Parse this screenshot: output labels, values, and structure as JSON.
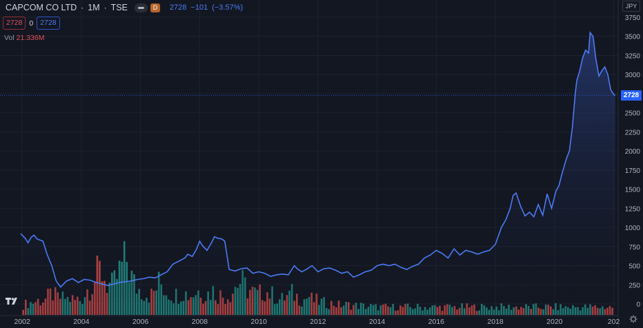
{
  "header": {
    "symbol": "CAPCOM CO LTD",
    "interval": "1M",
    "exchange": "TSE",
    "separator": "·",
    "badge": "D",
    "price": "2728",
    "change": "−101",
    "change_pct": "(−3.57%)"
  },
  "ohlc_row": {
    "bid": "2728",
    "spread": "0",
    "ask": "2728"
  },
  "volume_legend": {
    "label": "Vol",
    "value": "21.336M"
  },
  "currency": "JPY",
  "last_price_badge": "2728",
  "colors": {
    "background": "#131722",
    "line": "#4c7bf5",
    "area_top": "#1f2d5c",
    "vol_up": "#26a69a",
    "vol_down": "#ef5350",
    "badge_blue": "#2962ff"
  },
  "chart_data": {
    "type": "area",
    "title": "CAPCOM CO LTD · 1M · TSE",
    "xlabel": "",
    "ylabel": "",
    "x_ticks": [
      "2002",
      "2004",
      "2006",
      "2008",
      "2010",
      "2012",
      "2014",
      "2016",
      "2018",
      "2020",
      "202"
    ],
    "y_ticks": [
      0,
      250,
      500,
      750,
      1000,
      1250,
      1500,
      1750,
      2000,
      2250,
      2500,
      2750,
      3000,
      3250,
      3500,
      3750
    ],
    "ylim": [
      -150,
      3850
    ],
    "xlim": [
      2001.95,
      2022.15
    ],
    "grid": true,
    "series": [
      {
        "name": "Price",
        "x": [
          2001.95,
          2002.1,
          2002.2,
          2002.3,
          2002.4,
          2002.5,
          2002.7,
          2002.85,
          2003.0,
          2003.15,
          2003.3,
          2003.5,
          2003.7,
          2003.9,
          2004.1,
          2004.3,
          2004.5,
          2004.7,
          2004.9,
          2005.1,
          2005.3,
          2005.5,
          2005.7,
          2005.9,
          2006.1,
          2006.3,
          2006.5,
          2006.7,
          2006.9,
          2007.1,
          2007.3,
          2007.5,
          2007.6,
          2007.75,
          2007.9,
          2008.0,
          2008.1,
          2008.25,
          2008.4,
          2008.5,
          2008.6,
          2008.75,
          2008.85,
          2009.0,
          2009.2,
          2009.4,
          2009.6,
          2009.8,
          2010.0,
          2010.2,
          2010.4,
          2010.6,
          2010.8,
          2011.0,
          2011.2,
          2011.3,
          2011.45,
          2011.6,
          2011.8,
          2012.0,
          2012.2,
          2012.4,
          2012.6,
          2012.8,
          2013.0,
          2013.2,
          2013.4,
          2013.6,
          2013.8,
          2014.0,
          2014.2,
          2014.4,
          2014.6,
          2014.8,
          2015.0,
          2015.2,
          2015.4,
          2015.6,
          2015.8,
          2016.0,
          2016.2,
          2016.4,
          2016.6,
          2016.8,
          2017.0,
          2017.2,
          2017.4,
          2017.6,
          2017.8,
          2018.0,
          2018.2,
          2018.35,
          2018.5,
          2018.6,
          2018.7,
          2018.85,
          2019.0,
          2019.15,
          2019.3,
          2019.45,
          2019.6,
          2019.75,
          2019.9,
          2020.05,
          2020.15,
          2020.25,
          2020.4,
          2020.5,
          2020.6,
          2020.7,
          2020.75,
          2020.85,
          2020.95,
          2021.05,
          2021.15,
          2021.2,
          2021.3,
          2021.4,
          2021.5,
          2021.6,
          2021.7,
          2021.8,
          2021.9,
          2022.0,
          2022.05
        ],
        "y": [
          920,
          860,
          800,
          870,
          900,
          850,
          820,
          640,
          500,
          300,
          220,
          300,
          330,
          280,
          320,
          310,
          280,
          260,
          240,
          260,
          280,
          290,
          300,
          320,
          330,
          350,
          340,
          380,
          420,
          520,
          560,
          600,
          650,
          620,
          720,
          820,
          760,
          700,
          800,
          880,
          860,
          850,
          820,
          450,
          430,
          460,
          470,
          400,
          420,
          400,
          360,
          380,
          390,
          380,
          500,
          460,
          420,
          450,
          500,
          420,
          460,
          470,
          440,
          400,
          420,
          350,
          380,
          420,
          440,
          500,
          520,
          500,
          520,
          480,
          450,
          490,
          520,
          600,
          640,
          700,
          660,
          600,
          720,
          640,
          700,
          680,
          650,
          680,
          700,
          780,
          1000,
          1100,
          1250,
          1420,
          1450,
          1280,
          1150,
          1200,
          1140,
          1300,
          1160,
          1440,
          1250,
          1480,
          1550,
          1700,
          1900,
          2000,
          2300,
          2750,
          2920,
          3050,
          3220,
          3320,
          3280,
          3550,
          3500,
          3200,
          2980,
          3050,
          3100,
          3000,
          2800,
          2740,
          2728
        ]
      },
      {
        "name": "Volume",
        "axis": "Vol",
        "values": [
          14,
          15,
          17,
          17,
          18,
          19,
          20,
          20,
          21,
          22,
          25,
          28,
          30,
          26,
          24,
          24,
          23,
          24,
          22,
          22,
          22,
          20,
          22,
          21,
          24,
          30,
          36,
          40,
          44,
          50,
          56,
          62,
          60,
          52,
          44,
          42,
          40,
          44,
          52,
          60,
          68,
          72,
          78,
          64,
          52,
          44,
          38,
          36,
          34,
          32,
          30,
          28,
          28,
          32,
          38,
          44,
          44,
          38,
          34,
          32,
          30,
          28,
          28,
          30,
          32,
          34,
          30,
          28,
          28,
          30,
          32,
          34,
          36,
          30,
          28,
          30,
          32,
          34,
          30,
          28,
          28,
          26,
          26,
          28,
          30,
          34,
          40,
          44,
          46,
          44,
          40,
          36,
          34,
          32,
          30,
          28,
          30,
          32,
          34,
          32,
          30,
          28,
          26,
          24,
          22,
          22,
          24,
          26,
          28,
          30,
          28,
          26,
          24,
          22,
          22,
          24,
          26,
          22,
          20,
          20,
          18,
          18,
          17,
          16,
          16,
          16,
          16,
          15,
          14,
          14,
          14,
          14,
          14,
          14,
          13,
          13,
          13,
          13,
          12,
          12,
          12,
          12,
          11,
          11,
          11,
          11,
          11,
          11,
          11,
          11,
          11,
          11,
          11,
          11,
          11,
          11,
          11,
          11,
          11,
          11,
          11,
          11,
          11,
          11,
          11,
          11,
          11,
          11,
          11,
          11,
          11,
          11,
          11,
          11,
          11,
          11,
          11,
          11,
          11,
          11,
          11,
          11,
          11,
          11,
          11,
          11,
          11,
          11,
          11,
          11,
          11,
          11,
          11,
          11,
          11,
          11,
          11,
          11,
          11,
          11,
          11,
          11,
          11,
          11,
          11,
          11,
          11,
          11,
          11,
          11,
          11,
          11,
          11,
          11,
          11,
          11,
          11,
          11,
          11,
          11,
          11,
          11,
          11,
          11,
          11,
          11,
          11,
          11,
          11,
          11,
          11,
          11,
          11,
          11,
          11,
          11,
          11,
          11,
          11,
          11,
          11,
          11,
          11,
          11
        ],
        "ylim": [
          0,
          100
        ]
      }
    ],
    "legend": "top-left"
  }
}
